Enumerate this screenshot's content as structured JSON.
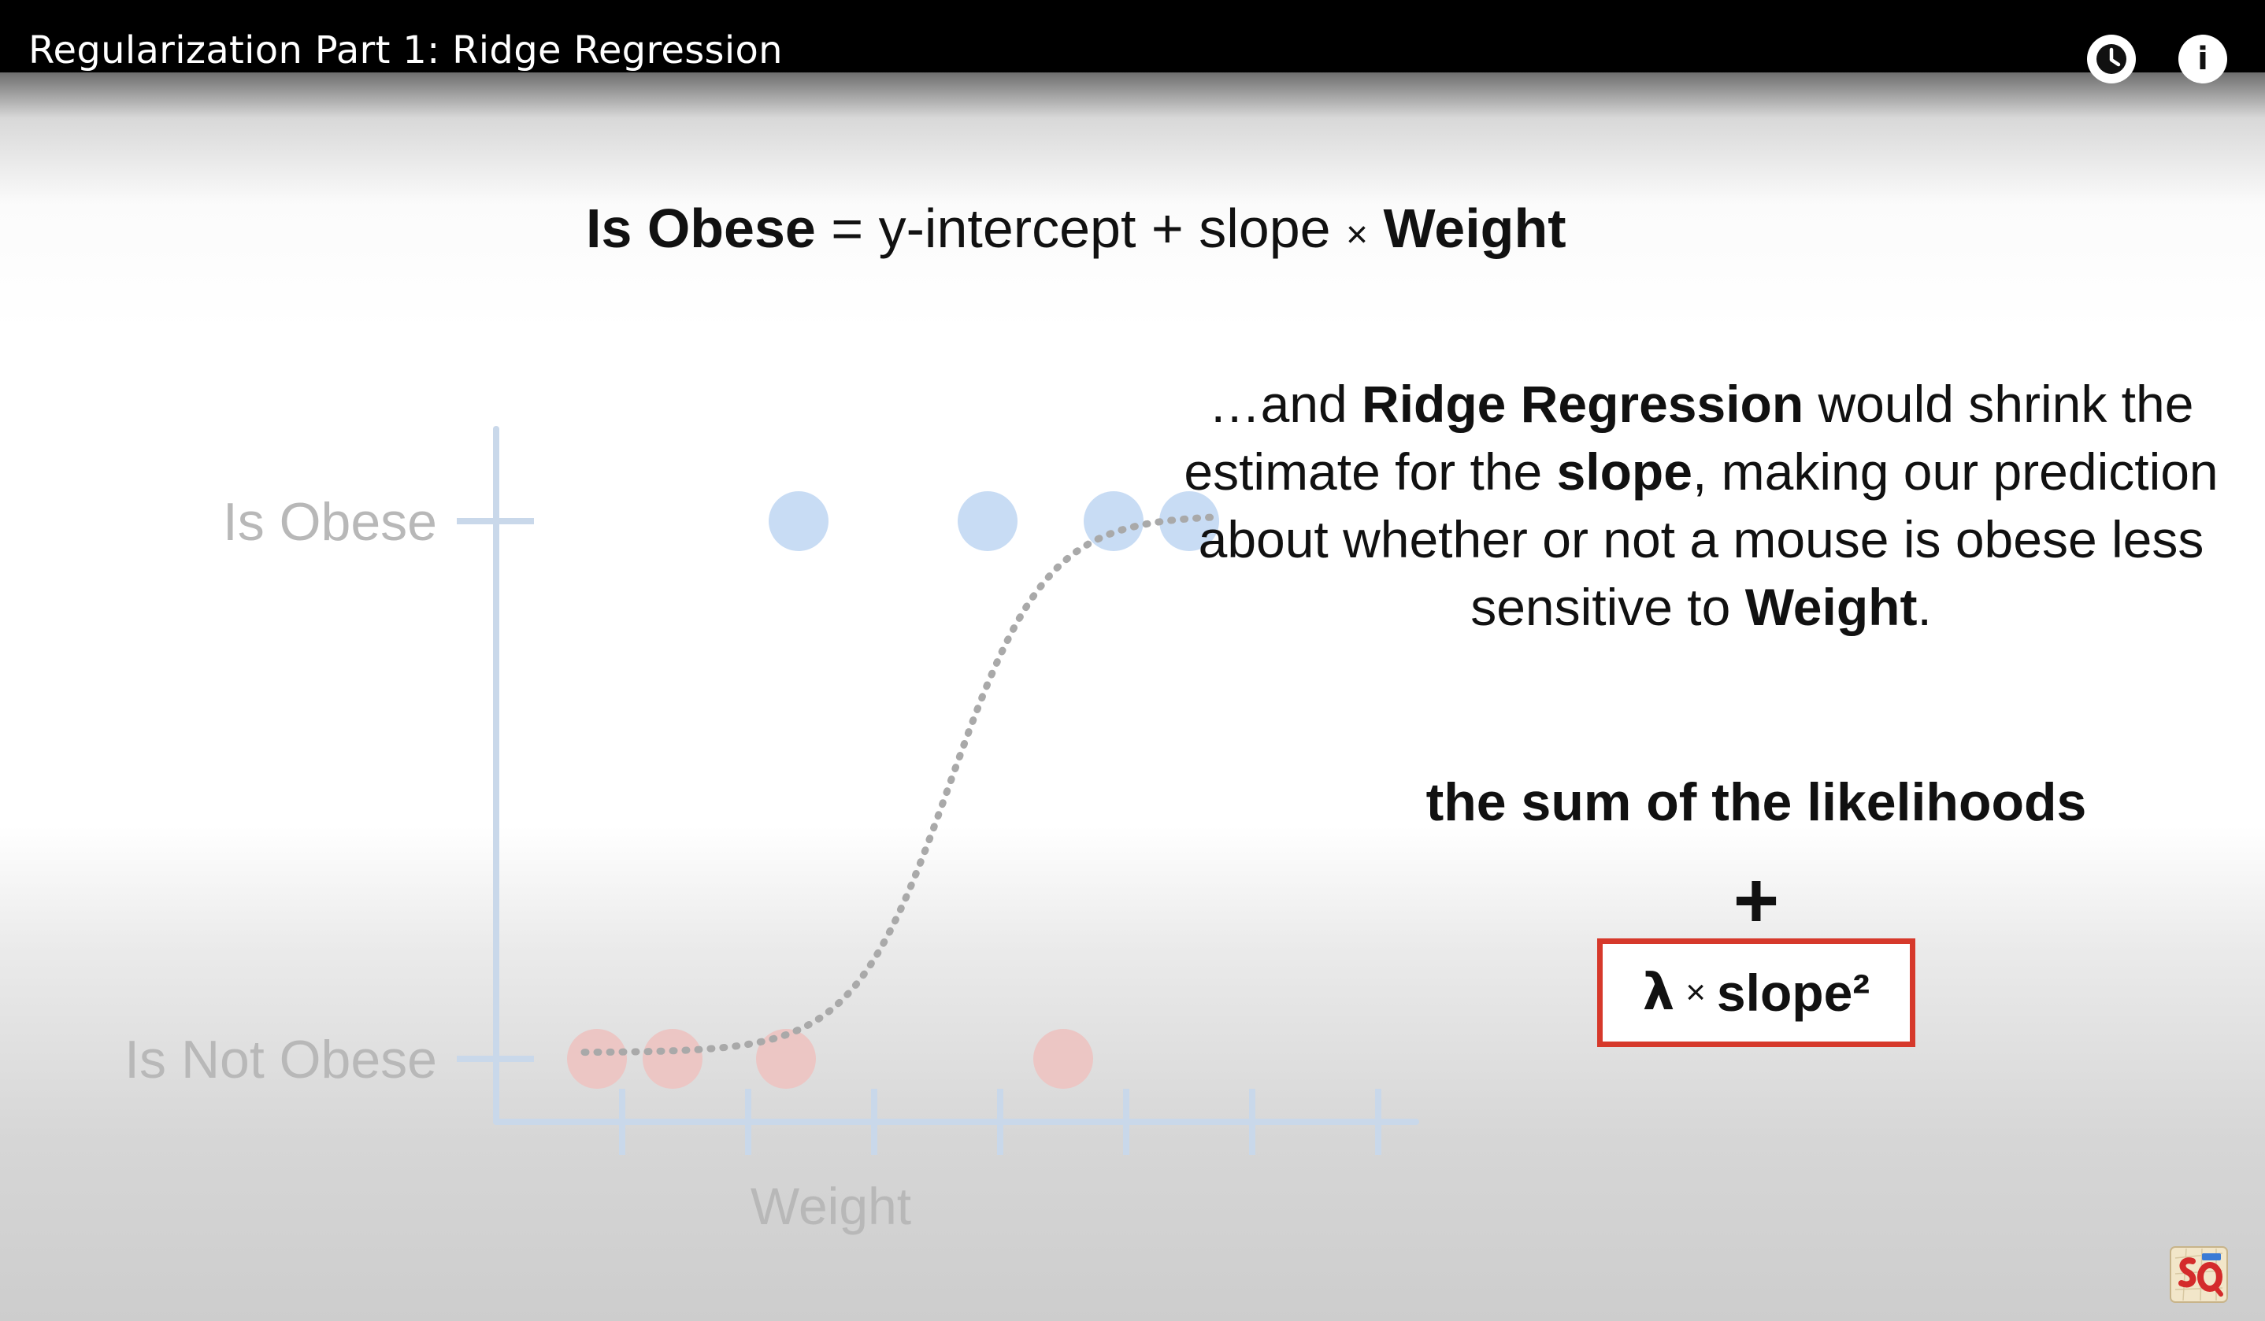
{
  "player": {
    "video_title": "Regularization Part 1: Ridge Regression",
    "watch_later_icon": "clock-icon",
    "info_icon": "info-icon",
    "info_glyph": "i"
  },
  "equation": {
    "lhs": "Is Obese",
    "equals": "=",
    "intercept": "y-intercept",
    "plus": "+",
    "slope": "slope",
    "times": "×",
    "variable": "Weight"
  },
  "explanation": {
    "part1": "…and ",
    "bold1": "Ridge Regression",
    "part2": " would shrink the estimate for the ",
    "bold2": "slope",
    "part3": ", making our prediction about whether or not a mouse is obese less sensitive to ",
    "bold3": "Weight",
    "part4": "."
  },
  "penalty": {
    "sum_label": "the sum of the likelihoods",
    "plus": "+",
    "lambda": "λ",
    "times": "×",
    "term": "slope²",
    "box_color": "#d6392b"
  },
  "chart_data": {
    "type": "scatter",
    "x_axis_label": "Weight",
    "y_tick_labels": [
      "Is Obese",
      "Is Not Obese"
    ],
    "x_tick_count": 7,
    "obese_points_x": [
      2.4,
      3.9,
      4.9,
      5.5
    ],
    "not_obese_points_x": [
      0.8,
      1.4,
      2.3,
      4.5
    ],
    "curve": "dotted logistic S-curve from Is Not Obese to Is Obese",
    "colors": {
      "axis": "#c9d8ea",
      "tick_text": "#b8b8b8",
      "obese_point": "#c8dcf4",
      "not_obese_point": "#ecc6c4",
      "curve": "#a9a9a9"
    }
  },
  "branding": {
    "channel_logo_icon": "statquest-logo-icon"
  }
}
